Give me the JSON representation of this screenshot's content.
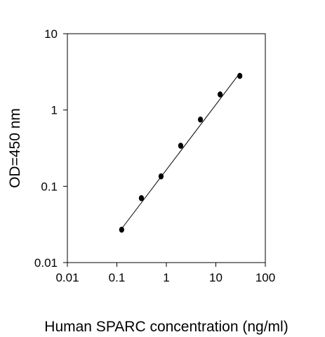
{
  "chart_data": {
    "type": "scatter",
    "xlabel": "Human SPARC concentration (ng/ml)",
    "ylabel": "OD=450 nm",
    "x_scale": "log",
    "y_scale": "log",
    "xlim": [
      0.01,
      100
    ],
    "ylim": [
      0.01,
      10
    ],
    "x_ticks": [
      "0.01",
      "0.1",
      "1",
      "10",
      "100"
    ],
    "y_ticks": [
      "0.01",
      "0.1",
      "1",
      "10"
    ],
    "grid": false,
    "legend": "none",
    "colors": {
      "points": "#000000",
      "line": "#000000",
      "frame": "#000000"
    },
    "series": [
      {
        "x": [
          0.125,
          0.313,
          0.781,
          1.95,
          4.88,
          12.2,
          30.5
        ],
        "y": [
          0.027,
          0.07,
          0.135,
          0.34,
          0.75,
          1.6,
          2.8
        ]
      }
    ],
    "fit_line": {
      "x": [
        0.125,
        30.5
      ],
      "y": [
        0.0278,
        3.05
      ]
    }
  }
}
